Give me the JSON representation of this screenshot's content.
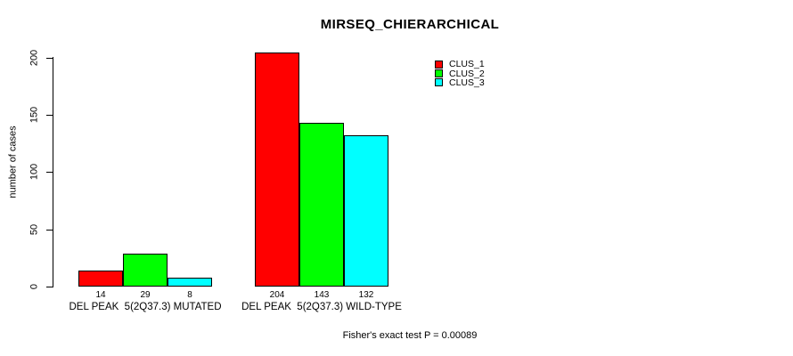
{
  "window": {
    "background": "#ffffff"
  },
  "chart_data": {
    "type": "bar",
    "title": "MIRSEQ_CHIERARCHICAL",
    "ylabel": "number of cases",
    "xlabel": "",
    "ylim": [
      0,
      200
    ],
    "yticks": [
      0,
      50,
      100,
      150,
      200
    ],
    "grid": false,
    "legend_position": "top-right",
    "bar_border_color": "#000000",
    "text_color": "#000000",
    "categories": [
      "DEL PEAK  5(2Q37.3) MUTATED",
      "DEL PEAK  5(2Q37.3) WILD-TYPE"
    ],
    "series": [
      {
        "name": "CLUS_1",
        "color": "#ff0000",
        "values": [
          14,
          204
        ]
      },
      {
        "name": "CLUS_2",
        "color": "#00ff00",
        "values": [
          29,
          143
        ]
      },
      {
        "name": "CLUS_3",
        "color": "#00ffff",
        "values": [
          8,
          132
        ]
      }
    ],
    "bar_value_labels": [
      [
        14,
        29,
        8
      ],
      [
        204,
        143,
        132
      ]
    ],
    "annotation": "Fisher's exact test P = 0.00089"
  }
}
